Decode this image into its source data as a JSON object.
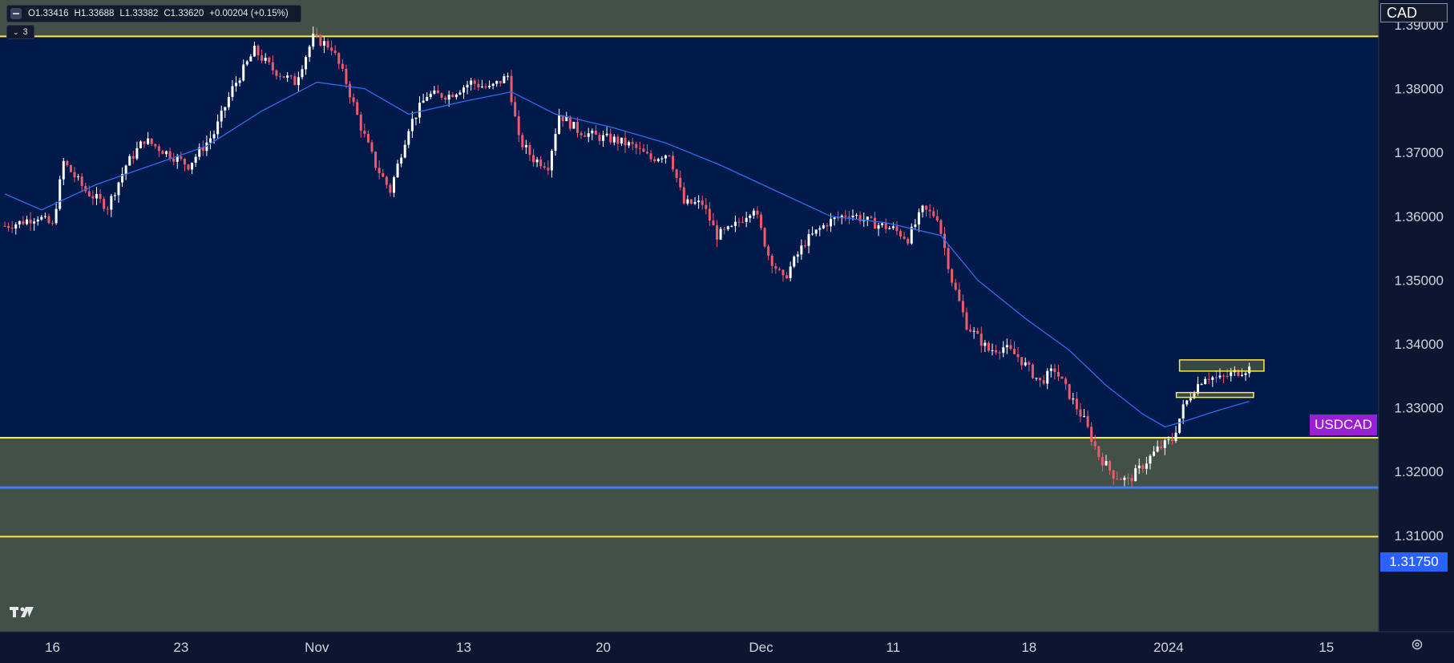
{
  "ohlc": {
    "open": "O1.33416",
    "high": "H1.33688",
    "low": "L1.33382",
    "close": "C1.33620",
    "change": "+0.00204 (+0.15%)"
  },
  "layers": {
    "count": "3"
  },
  "currency_label": "CAD",
  "symbol_label": "USDCAD",
  "price_marker": "1.31750",
  "colors": {
    "background": "#021a4a",
    "zone_fill": "#435048",
    "zone_line": "#ffeb3b",
    "support_line": "#3d7bff",
    "bull_candle": "#ffffff",
    "bear_candle": "#ef5a6a",
    "moving_average": "#2d6cf0",
    "symbol_label_bg": "#9c1dd6",
    "price_marker_bg": "#2962ff"
  },
  "icons": {
    "logo": "tradingview-logo-icon",
    "settings": "settings-gear-icon",
    "layers": "chevron-down-icon"
  },
  "chart_data": {
    "type": "candlestick",
    "symbol": "USDCAD",
    "y_axis": {
      "range": [
        1.3085,
        1.3915
      ],
      "ticks": [
        "1.39000",
        "1.38000",
        "1.37000",
        "1.36000",
        "1.35000",
        "1.34000",
        "1.33000",
        "1.32000",
        "1.31000"
      ],
      "tick_values": [
        1.39,
        1.38,
        1.37,
        1.36,
        1.35,
        1.34,
        1.33,
        1.32,
        1.31
      ]
    },
    "x_axis": {
      "ticks": [
        "16",
        "23",
        "Nov",
        "13",
        "20",
        "Dec",
        "11",
        "18",
        "2024",
        "15"
      ],
      "tick_bar_index": [
        13,
        48,
        85,
        125,
        163,
        206,
        242,
        279,
        317,
        360
      ],
      "total_bars": 372
    },
    "resistance_zone": {
      "top": 1.3915,
      "bottom": 1.3882
    },
    "support_zone": {
      "top": 1.3253,
      "bottom": 1.3098
    },
    "support_line": 1.3175,
    "consolidation_box": {
      "top": 1.3375,
      "bottom": 1.332,
      "start_bar": 320,
      "end_bar": 343
    },
    "current_price": 1.3362,
    "price_path": [
      [
        0,
        1.3585
      ],
      [
        4,
        1.359
      ],
      [
        9,
        1.36
      ],
      [
        13,
        1.3585
      ],
      [
        16,
        1.3685
      ],
      [
        22,
        1.364
      ],
      [
        28,
        1.3615
      ],
      [
        33,
        1.368
      ],
      [
        38,
        1.372
      ],
      [
        44,
        1.37
      ],
      [
        50,
        1.368
      ],
      [
        57,
        1.373
      ],
      [
        62,
        1.38
      ],
      [
        68,
        1.386
      ],
      [
        73,
        1.383
      ],
      [
        79,
        1.381
      ],
      [
        84,
        1.388
      ],
      [
        89,
        1.3865
      ],
      [
        93,
        1.381
      ],
      [
        97,
        1.374
      ],
      [
        101,
        1.368
      ],
      [
        105,
        1.364
      ],
      [
        110,
        1.374
      ],
      [
        115,
        1.379
      ],
      [
        121,
        1.379
      ],
      [
        127,
        1.381
      ],
      [
        132,
        1.38
      ],
      [
        137,
        1.382
      ],
      [
        140,
        1.372
      ],
      [
        144,
        1.369
      ],
      [
        148,
        1.368
      ],
      [
        151,
        1.376
      ],
      [
        156,
        1.3735
      ],
      [
        161,
        1.3725
      ],
      [
        166,
        1.372
      ],
      [
        171,
        1.371
      ],
      [
        176,
        1.369
      ],
      [
        181,
        1.37
      ],
      [
        185,
        1.362
      ],
      [
        190,
        1.362
      ],
      [
        194,
        1.357
      ],
      [
        198,
        1.358
      ],
      [
        204,
        1.3615
      ],
      [
        208,
        1.354
      ],
      [
        212,
        1.35
      ],
      [
        218,
        1.356
      ],
      [
        224,
        1.359
      ],
      [
        230,
        1.3605
      ],
      [
        236,
        1.359
      ],
      [
        242,
        1.358
      ],
      [
        246,
        1.3565
      ],
      [
        250,
        1.361
      ],
      [
        254,
        1.36
      ],
      [
        258,
        1.35
      ],
      [
        262,
        1.343
      ],
      [
        268,
        1.339
      ],
      [
        272,
        1.3395
      ],
      [
        276,
        1.338
      ],
      [
        282,
        1.334
      ],
      [
        286,
        1.336
      ],
      [
        290,
        1.332
      ],
      [
        294,
        1.328
      ],
      [
        298,
        1.3225
      ],
      [
        302,
        1.3195
      ],
      [
        306,
        1.3185
      ],
      [
        310,
        1.321
      ],
      [
        314,
        1.3235
      ],
      [
        318,
        1.325
      ],
      [
        321,
        1.33
      ],
      [
        324,
        1.333
      ],
      [
        327,
        1.335
      ],
      [
        331,
        1.3345
      ],
      [
        335,
        1.3355
      ],
      [
        339,
        1.3362
      ]
    ],
    "moving_average": [
      [
        0,
        1.3635
      ],
      [
        10,
        1.361
      ],
      [
        25,
        1.365
      ],
      [
        40,
        1.368
      ],
      [
        55,
        1.371
      ],
      [
        70,
        1.3765
      ],
      [
        85,
        1.381
      ],
      [
        98,
        1.38
      ],
      [
        110,
        1.376
      ],
      [
        125,
        1.378
      ],
      [
        138,
        1.3795
      ],
      [
        150,
        1.376
      ],
      [
        165,
        1.374
      ],
      [
        180,
        1.3715
      ],
      [
        195,
        1.368
      ],
      [
        210,
        1.364
      ],
      [
        225,
        1.36
      ],
      [
        240,
        1.359
      ],
      [
        255,
        1.357
      ],
      [
        265,
        1.35
      ],
      [
        278,
        1.344
      ],
      [
        290,
        1.339
      ],
      [
        300,
        1.3335
      ],
      [
        310,
        1.329
      ],
      [
        316,
        1.327
      ],
      [
        322,
        1.328
      ],
      [
        330,
        1.3295
      ],
      [
        339,
        1.331
      ]
    ]
  }
}
